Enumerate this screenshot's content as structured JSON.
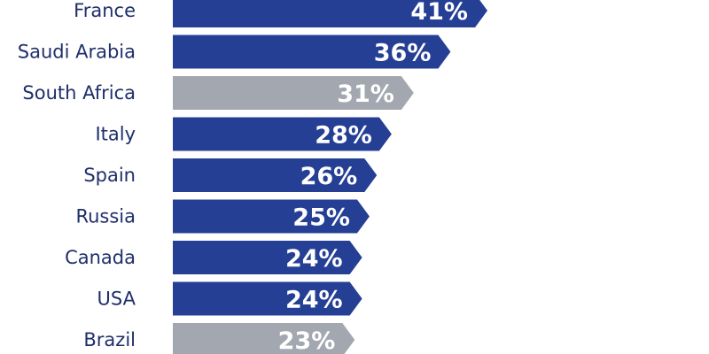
{
  "chart_data": {
    "type": "bar",
    "orientation": "horizontal",
    "categories": [
      "France",
      "Saudi Arabia",
      "South Africa",
      "Italy",
      "Spain",
      "Russia",
      "Canada",
      "USA",
      "Brazil"
    ],
    "values": [
      41,
      36,
      31,
      28,
      26,
      25,
      24,
      24,
      23
    ],
    "value_labels": [
      "41%",
      "36%",
      "31%",
      "28%",
      "26%",
      "25%",
      "24%",
      "24%",
      "23%"
    ],
    "highlighted": [
      false,
      false,
      true,
      false,
      false,
      false,
      false,
      false,
      true
    ],
    "unit": "%",
    "colors": {
      "default": "#253f94",
      "highlight": "#a3a8b0",
      "category_text": "#1f2f6b",
      "value_text": "#ffffff"
    },
    "bar_shape": "arrow",
    "grid": false,
    "legend": "none"
  }
}
